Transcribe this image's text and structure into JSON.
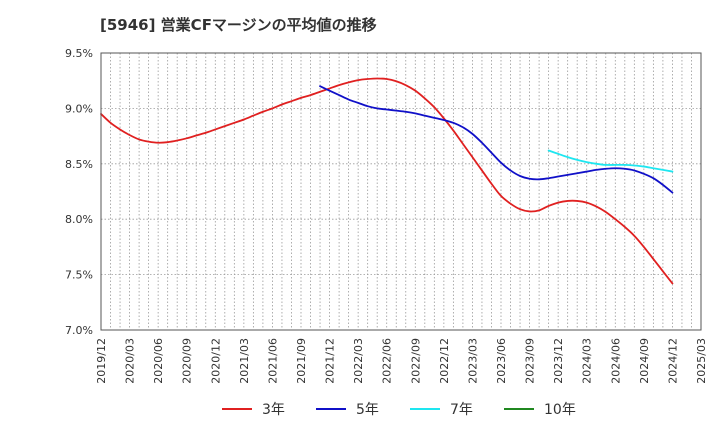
{
  "chart_data": {
    "type": "line",
    "title": "[5946]  営業CFマージンの平均値の推移",
    "xlabel": "",
    "ylabel": "",
    "ylim": [
      7.0,
      9.5
    ],
    "y_ticks": [
      "9.5%",
      "9.0%",
      "8.5%",
      "8.0%",
      "7.5%",
      "7.0%"
    ],
    "y_tick_values": [
      9.5,
      9.0,
      8.5,
      8.0,
      7.5,
      7.0
    ],
    "x_ticks": [
      "2019/12",
      "2020/03",
      "2020/06",
      "2020/09",
      "2020/12",
      "2021/03",
      "2021/06",
      "2021/09",
      "2021/12",
      "2022/03",
      "2022/06",
      "2022/09",
      "2022/12",
      "2023/03",
      "2023/06",
      "2023/09",
      "2023/12",
      "2024/03",
      "2024/06",
      "2024/09",
      "2024/12",
      "2025/03"
    ],
    "grid": true,
    "legend_position": "bottom",
    "series": [
      {
        "name": "3年",
        "color": "#e02020",
        "points": [
          [
            "2019/12",
            8.95
          ],
          [
            "2020/01",
            8.87
          ],
          [
            "2020/02",
            8.81
          ],
          [
            "2020/03",
            8.76
          ],
          [
            "2020/04",
            8.72
          ],
          [
            "2020/05",
            8.7
          ],
          [
            "2020/06",
            8.69
          ],
          [
            "2020/07",
            8.695
          ],
          [
            "2020/08",
            8.71
          ],
          [
            "2020/09",
            8.73
          ],
          [
            "2020/10",
            8.755
          ],
          [
            "2020/11",
            8.78
          ],
          [
            "2020/12",
            8.81
          ],
          [
            "2021/01",
            8.84
          ],
          [
            "2021/02",
            8.87
          ],
          [
            "2021/03",
            8.9
          ],
          [
            "2021/04",
            8.935
          ],
          [
            "2021/05",
            8.97
          ],
          [
            "2021/06",
            9.0
          ],
          [
            "2021/07",
            9.035
          ],
          [
            "2021/08",
            9.065
          ],
          [
            "2021/09",
            9.095
          ],
          [
            "2021/10",
            9.12
          ],
          [
            "2021/11",
            9.15
          ],
          [
            "2021/12",
            9.18
          ],
          [
            "2022/01",
            9.21
          ],
          [
            "2022/02",
            9.235
          ],
          [
            "2022/03",
            9.255
          ],
          [
            "2022/04",
            9.265
          ],
          [
            "2022/05",
            9.27
          ],
          [
            "2022/06",
            9.265
          ],
          [
            "2022/07",
            9.245
          ],
          [
            "2022/08",
            9.21
          ],
          [
            "2022/09",
            9.16
          ],
          [
            "2022/10",
            9.09
          ],
          [
            "2022/11",
            9.01
          ],
          [
            "2022/12",
            8.91
          ],
          [
            "2023/01",
            8.8
          ],
          [
            "2023/02",
            8.68
          ],
          [
            "2023/03",
            8.56
          ],
          [
            "2023/04",
            8.44
          ],
          [
            "2023/05",
            8.32
          ],
          [
            "2023/06",
            8.21
          ],
          [
            "2023/07",
            8.14
          ],
          [
            "2023/08",
            8.09
          ],
          [
            "2023/09",
            8.07
          ],
          [
            "2023/10",
            8.08
          ],
          [
            "2023/11",
            8.12
          ],
          [
            "2023/12",
            8.15
          ],
          [
            "2024/01",
            8.165
          ],
          [
            "2024/02",
            8.165
          ],
          [
            "2024/03",
            8.15
          ],
          [
            "2024/04",
            8.115
          ],
          [
            "2024/05",
            8.065
          ],
          [
            "2024/06",
            8.0
          ],
          [
            "2024/07",
            7.93
          ],
          [
            "2024/08",
            7.85
          ],
          [
            "2024/09",
            7.75
          ],
          [
            "2024/10",
            7.64
          ],
          [
            "2024/11",
            7.53
          ],
          [
            "2024/12",
            7.42
          ]
        ]
      },
      {
        "name": "5年",
        "color": "#1010c8",
        "points": [
          [
            "2021/11",
            9.2
          ],
          [
            "2021/12",
            9.16
          ],
          [
            "2022/01",
            9.12
          ],
          [
            "2022/02",
            9.08
          ],
          [
            "2022/03",
            9.05
          ],
          [
            "2022/04",
            9.02
          ],
          [
            "2022/05",
            9.0
          ],
          [
            "2022/06",
            8.99
          ],
          [
            "2022/07",
            8.98
          ],
          [
            "2022/08",
            8.97
          ],
          [
            "2022/09",
            8.955
          ],
          [
            "2022/10",
            8.935
          ],
          [
            "2022/11",
            8.915
          ],
          [
            "2022/12",
            8.895
          ],
          [
            "2023/01",
            8.87
          ],
          [
            "2023/02",
            8.83
          ],
          [
            "2023/03",
            8.77
          ],
          [
            "2023/04",
            8.69
          ],
          [
            "2023/05",
            8.6
          ],
          [
            "2023/06",
            8.51
          ],
          [
            "2023/07",
            8.44
          ],
          [
            "2023/08",
            8.39
          ],
          [
            "2023/09",
            8.365
          ],
          [
            "2023/10",
            8.36
          ],
          [
            "2023/11",
            8.37
          ],
          [
            "2023/12",
            8.385
          ],
          [
            "2024/01",
            8.4
          ],
          [
            "2024/02",
            8.415
          ],
          [
            "2024/03",
            8.43
          ],
          [
            "2024/04",
            8.445
          ],
          [
            "2024/05",
            8.455
          ],
          [
            "2024/06",
            8.46
          ],
          [
            "2024/07",
            8.455
          ],
          [
            "2024/08",
            8.44
          ],
          [
            "2024/09",
            8.41
          ],
          [
            "2024/10",
            8.37
          ],
          [
            "2024/11",
            8.31
          ],
          [
            "2024/12",
            8.24
          ]
        ]
      },
      {
        "name": "7年",
        "color": "#1ee6f0",
        "points": [
          [
            "2023/11",
            8.62
          ],
          [
            "2023/12",
            8.59
          ],
          [
            "2024/01",
            8.56
          ],
          [
            "2024/02",
            8.535
          ],
          [
            "2024/03",
            8.515
          ],
          [
            "2024/04",
            8.5
          ],
          [
            "2024/05",
            8.49
          ],
          [
            "2024/06",
            8.49
          ],
          [
            "2024/07",
            8.49
          ],
          [
            "2024/08",
            8.485
          ],
          [
            "2024/09",
            8.475
          ],
          [
            "2024/10",
            8.46
          ],
          [
            "2024/11",
            8.445
          ],
          [
            "2024/12",
            8.43
          ]
        ]
      },
      {
        "name": "10年",
        "color": "#208820",
        "points": []
      }
    ]
  }
}
